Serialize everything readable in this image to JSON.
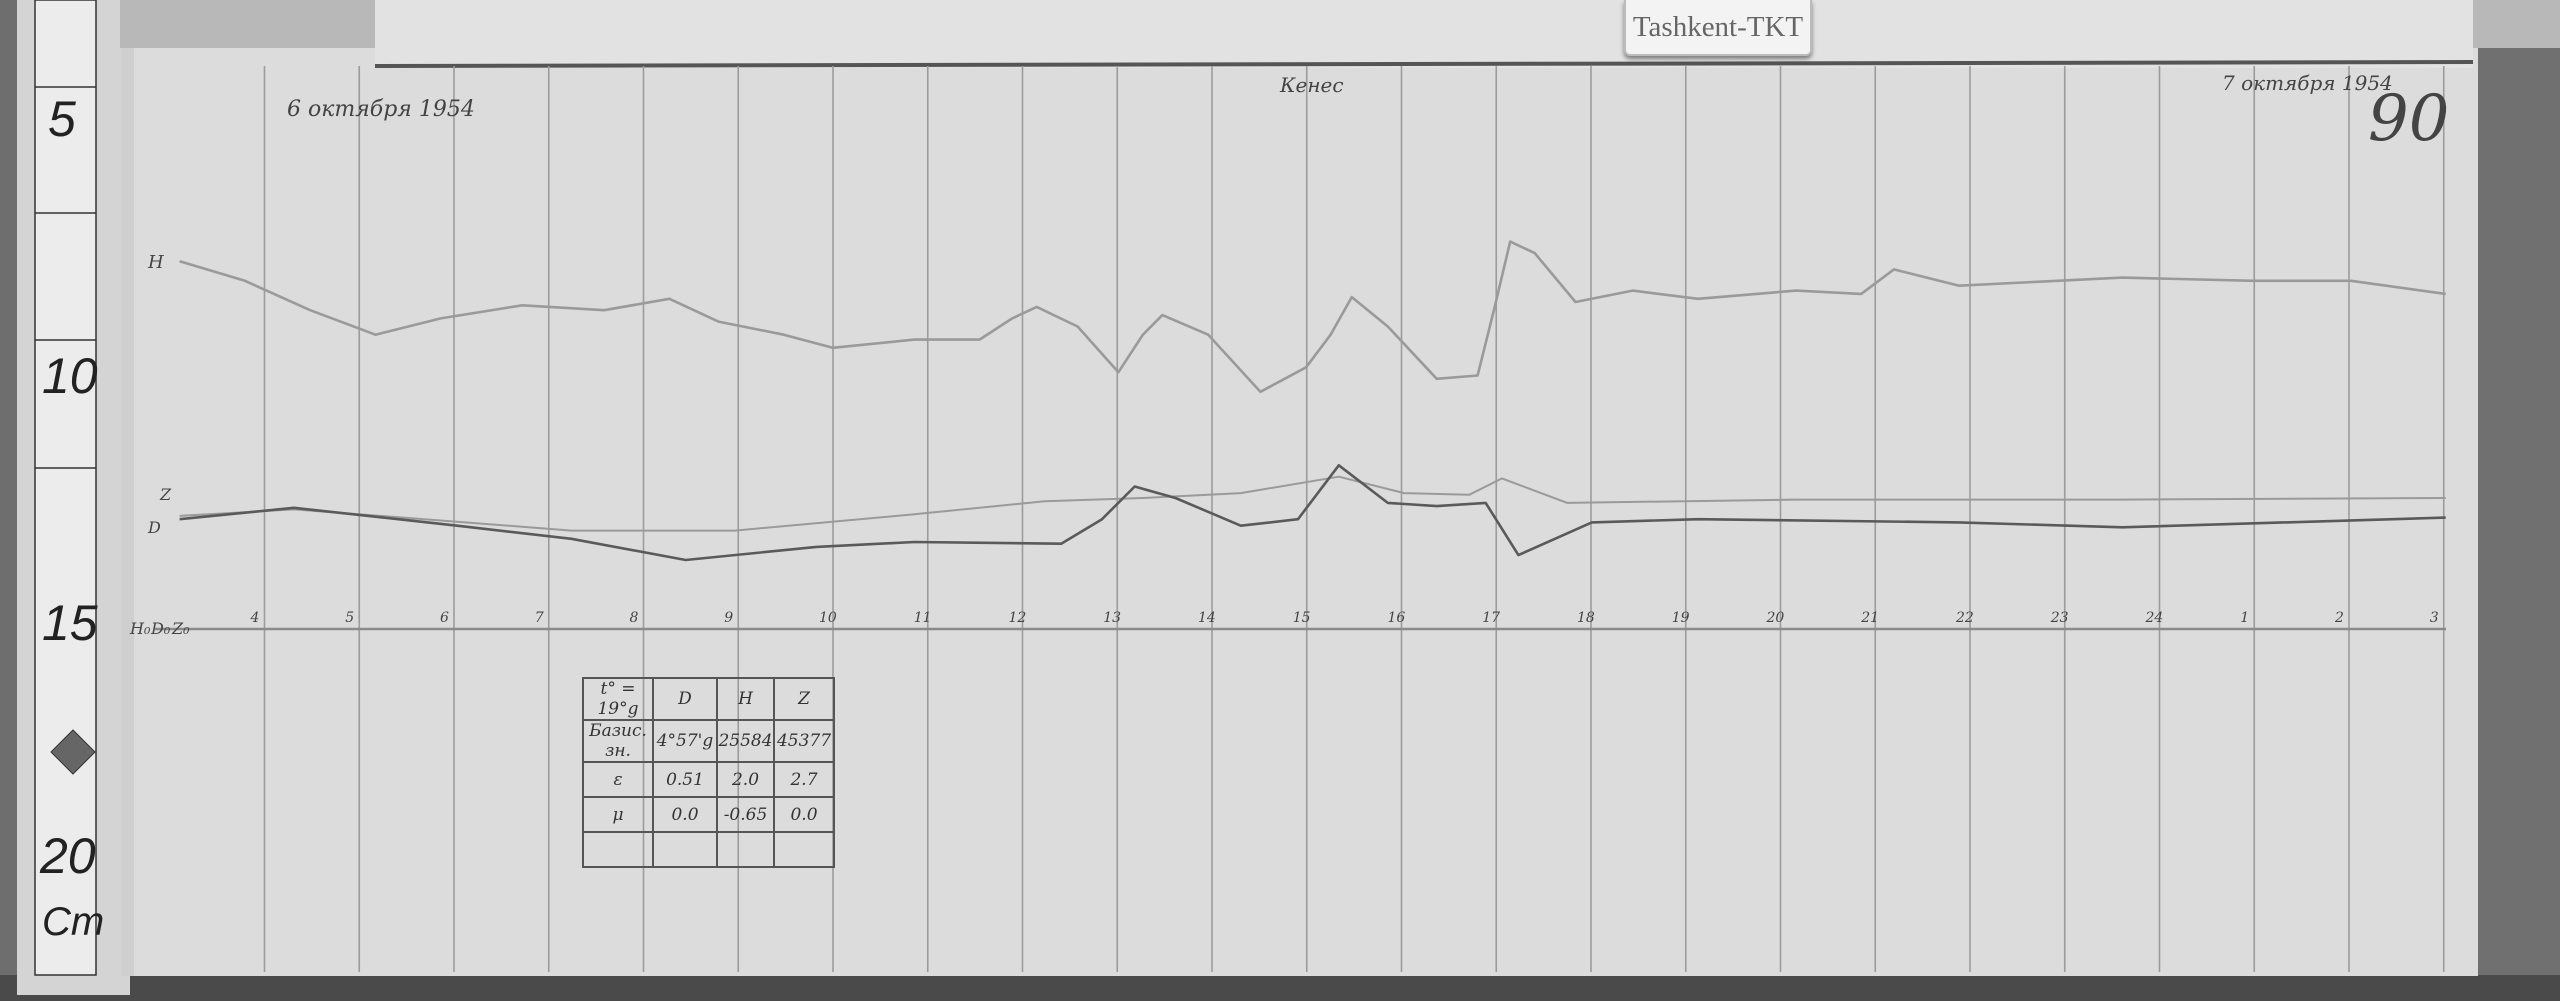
{
  "station_label": "Tashkent-TKT",
  "header": {
    "date_start": "6 октября 1954",
    "date_end": "7 октября 1954",
    "observer": "Кенес",
    "sheet_number": "90"
  },
  "ruler": {
    "marks": [
      "5",
      "10",
      "15",
      "20"
    ],
    "unit": "Cm"
  },
  "traces": {
    "labels": {
      "H": "H",
      "Z": "Z",
      "D": "D"
    },
    "baseline_labels": [
      "H₀",
      "D₀",
      "Z₀"
    ]
  },
  "hour_axis": [
    "4",
    "5",
    "6",
    "7",
    "8",
    "9",
    "10",
    "11",
    "12",
    "13",
    "14",
    "15",
    "16",
    "17",
    "18",
    "19",
    "20",
    "21",
    "22",
    "23",
    "24",
    "1",
    "2",
    "3"
  ],
  "table": {
    "rows": [
      [
        "t° = 19°g",
        "D",
        "H",
        "Z"
      ],
      [
        "Базис. зн.",
        "4°57'g",
        "25584",
        "45377"
      ],
      [
        "ε",
        "0.51",
        "2.0",
        "2.7"
      ],
      [
        "μ",
        "0.0",
        "-0.65",
        "0.0"
      ],
      [
        "",
        "",
        "",
        ""
      ]
    ]
  },
  "colors": {
    "paper": "#dcdcdc",
    "trace_dark": "#5a5a5a",
    "trace_light": "#9a9a9a",
    "wood": "#6c6c6c"
  }
}
